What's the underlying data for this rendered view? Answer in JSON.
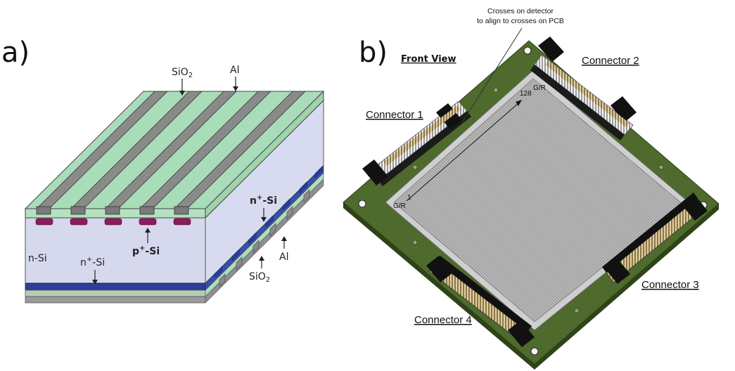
{
  "panel_a": {
    "letter": "a)",
    "labels": {
      "sio2_top_main": "SiO",
      "sio2_top_sub": "2",
      "al_top": "Al",
      "n_plus_si_right_sup": "n",
      "n_plus_si_right_plus": "+",
      "n_plus_si_right_rest": "-Si",
      "n_si": "n-Si",
      "n_plus_si_bottom_n": "n",
      "n_plus_si_bottom_plus": "+",
      "n_plus_si_bottom_rest": "-Si",
      "p_plus_si_p": "p",
      "p_plus_si_plus": "+",
      "p_plus_si_rest": "-Si",
      "al_right": "Al",
      "sio2_bottom_main": "SiO",
      "sio2_bottom_sub": "2"
    }
  },
  "panel_b": {
    "letter": "b)",
    "front_view": "Front View",
    "annotation_line1": "Crosses on detector",
    "annotation_line2": "to align to crosses on PCB",
    "connector1": "Connector 1",
    "connector2": "Connector 2",
    "connector3": "Connector 3",
    "connector4": "Connector 4",
    "strip_128": "128",
    "gr_top": "G/R",
    "strip_1": "1",
    "gr_bottom": "G/R"
  },
  "colors": {
    "oxide_green": "#a9dcb8",
    "aluminium_gray": "#8a8a8a",
    "bulk_lavender": "#d6d9ee",
    "p_implant": "#8e1a5a",
    "n_implant_blue": "#2a3f9a",
    "pcb_green": "#4e6a2c",
    "sensor_gray": "#a7a7a7",
    "connector_black": "#111111",
    "pins_gold": "#b8a06a"
  }
}
